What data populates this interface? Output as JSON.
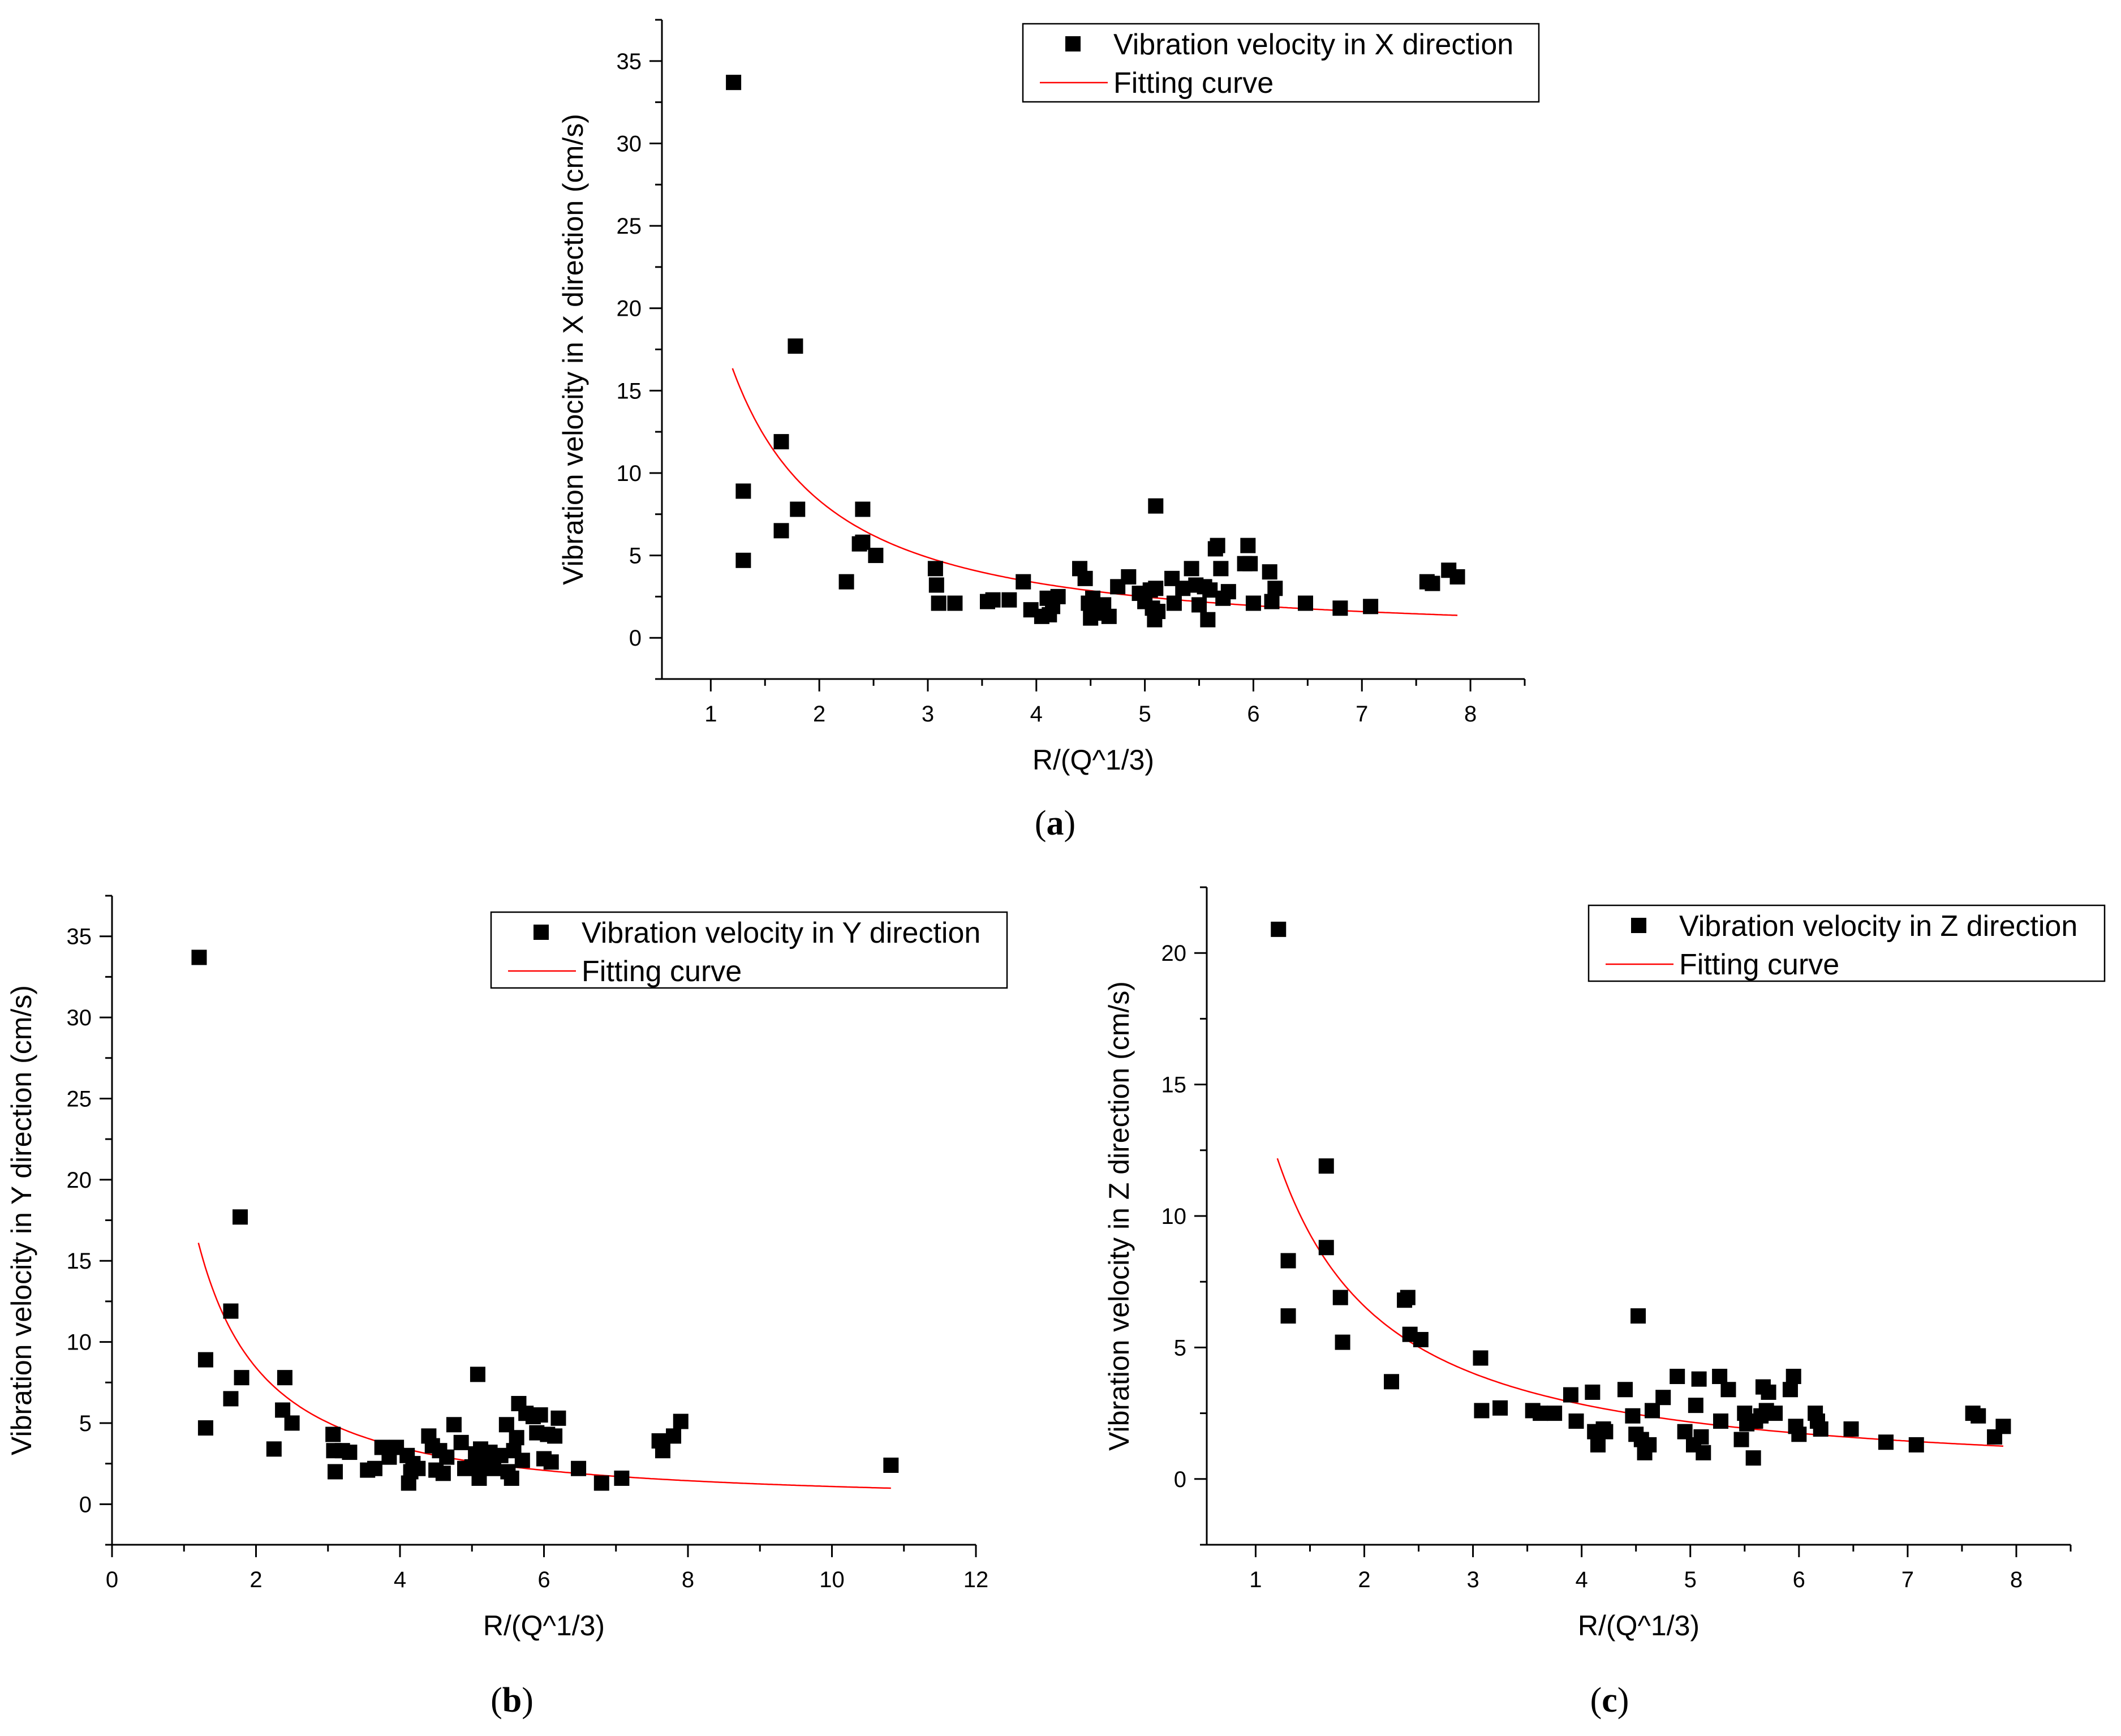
{
  "figure": {
    "panels": [
      "a",
      "b",
      "c"
    ]
  },
  "chart_data": [
    {
      "id": "a",
      "type": "scatter",
      "caption": {
        "open": "(",
        "letter": "a",
        "close": ")"
      },
      "xlabel": "R/(Q^1/3)",
      "ylabel": "Vibration velocity in X direction (cm/s)",
      "xlim": [
        0.55,
        8.5
      ],
      "ylim": [
        -2.5,
        37.5
      ],
      "xticks": [
        1,
        2,
        3,
        4,
        5,
        6,
        7,
        8
      ],
      "yticks": [
        0,
        5,
        10,
        15,
        20,
        25,
        30,
        35
      ],
      "legend": {
        "position": "top-right",
        "series_label": "Vibration velocity in X direction",
        "fit_label": "Fitting curve"
      },
      "colors": {
        "points": "#000000",
        "fit": "#ff0000"
      },
      "fit": {
        "k": 20.8,
        "alpha": 1.32,
        "x_range": [
          1.2,
          7.88
        ]
      },
      "points": [
        [
          1.21,
          33.7
        ],
        [
          1.78,
          17.7
        ],
        [
          1.65,
          11.9
        ],
        [
          1.3,
          8.9
        ],
        [
          1.3,
          4.7
        ],
        [
          1.65,
          6.5
        ],
        [
          1.8,
          7.8
        ],
        [
          2.4,
          7.8
        ],
        [
          2.37,
          5.7
        ],
        [
          2.4,
          5.8
        ],
        [
          2.52,
          5.0
        ],
        [
          2.25,
          3.4
        ],
        [
          3.07,
          4.2
        ],
        [
          3.08,
          3.2
        ],
        [
          3.1,
          2.1
        ],
        [
          3.25,
          2.1
        ],
        [
          3.55,
          2.2
        ],
        [
          3.6,
          2.3
        ],
        [
          3.75,
          2.3
        ],
        [
          3.88,
          3.4
        ],
        [
          3.95,
          1.7
        ],
        [
          4.05,
          1.3
        ],
        [
          4.1,
          2.4
        ],
        [
          4.12,
          1.4
        ],
        [
          4.15,
          1.9
        ],
        [
          4.2,
          2.5
        ],
        [
          4.4,
          4.2
        ],
        [
          4.45,
          3.6
        ],
        [
          4.48,
          2.1
        ],
        [
          4.5,
          1.2
        ],
        [
          4.52,
          2.4
        ],
        [
          4.6,
          1.5
        ],
        [
          4.62,
          2.0
        ],
        [
          4.67,
          1.3
        ],
        [
          4.75,
          3.1
        ],
        [
          4.85,
          3.7
        ],
        [
          4.95,
          2.7
        ],
        [
          5.0,
          2.2
        ],
        [
          5.05,
          2.9
        ],
        [
          5.07,
          1.8
        ],
        [
          5.09,
          1.1
        ],
        [
          5.1,
          3.0
        ],
        [
          5.1,
          8.0
        ],
        [
          5.12,
          1.6
        ],
        [
          5.25,
          3.6
        ],
        [
          5.27,
          2.1
        ],
        [
          5.35,
          3.0
        ],
        [
          5.43,
          4.2
        ],
        [
          5.47,
          3.2
        ],
        [
          5.5,
          2.0
        ],
        [
          5.55,
          3.1
        ],
        [
          5.58,
          1.1
        ],
        [
          5.6,
          2.9
        ],
        [
          5.65,
          5.4
        ],
        [
          5.67,
          5.6
        ],
        [
          5.7,
          4.2
        ],
        [
          5.72,
          2.4
        ],
        [
          5.77,
          2.8
        ],
        [
          5.92,
          4.5
        ],
        [
          5.95,
          5.6
        ],
        [
          5.97,
          4.5
        ],
        [
          6.0,
          2.1
        ],
        [
          6.15,
          4.0
        ],
        [
          6.17,
          2.2
        ],
        [
          6.2,
          3.0
        ],
        [
          6.48,
          2.1
        ],
        [
          6.8,
          1.8
        ],
        [
          7.08,
          1.9
        ],
        [
          7.6,
          3.4
        ],
        [
          7.65,
          3.3
        ],
        [
          7.8,
          4.1
        ],
        [
          7.88,
          3.7
        ]
      ]
    },
    {
      "id": "b",
      "type": "scatter",
      "caption": {
        "open": "(",
        "letter": "b",
        "close": ")"
      },
      "xlabel": "R/(Q^1/3)",
      "ylabel": "Vibration velocity in Y direction (cm/s)",
      "xlim": [
        0,
        12
      ],
      "ylim": [
        -2.5,
        37.5
      ],
      "xticks": [
        0,
        2,
        4,
        6,
        8,
        10,
        12
      ],
      "yticks": [
        0,
        5,
        10,
        15,
        20,
        25,
        30,
        35
      ],
      "legend": {
        "position": "top-right",
        "series_label": "Vibration velocity in Y direction",
        "fit_label": "Fitting curve"
      },
      "colors": {
        "points": "#000000",
        "fit": "#ff0000"
      },
      "fit": {
        "k": 20.3,
        "alpha": 1.27,
        "x_range": [
          1.2,
          10.82
        ]
      },
      "points": [
        [
          1.21,
          33.7
        ],
        [
          1.78,
          17.7
        ],
        [
          1.65,
          11.9
        ],
        [
          1.3,
          8.9
        ],
        [
          1.3,
          4.7
        ],
        [
          1.65,
          6.5
        ],
        [
          1.8,
          7.8
        ],
        [
          2.4,
          7.8
        ],
        [
          2.37,
          5.8
        ],
        [
          2.5,
          5.0
        ],
        [
          2.25,
          3.4
        ],
        [
          3.07,
          4.3
        ],
        [
          3.08,
          3.3
        ],
        [
          3.1,
          2.0
        ],
        [
          3.2,
          3.3
        ],
        [
          3.3,
          3.2
        ],
        [
          3.55,
          2.1
        ],
        [
          3.65,
          2.2
        ],
        [
          3.75,
          3.5
        ],
        [
          3.85,
          2.9
        ],
        [
          3.95,
          3.5
        ],
        [
          4.1,
          3.0
        ],
        [
          4.12,
          1.3
        ],
        [
          4.15,
          2.0
        ],
        [
          4.18,
          2.5
        ],
        [
          4.25,
          2.2
        ],
        [
          4.4,
          4.2
        ],
        [
          4.45,
          3.6
        ],
        [
          4.5,
          2.1
        ],
        [
          4.55,
          3.3
        ],
        [
          4.6,
          1.9
        ],
        [
          4.65,
          2.9
        ],
        [
          4.75,
          4.9
        ],
        [
          4.85,
          3.8
        ],
        [
          4.9,
          2.2
        ],
        [
          5.0,
          2.3
        ],
        [
          5.05,
          3.1
        ],
        [
          5.08,
          8.0
        ],
        [
          5.1,
          1.6
        ],
        [
          5.12,
          3.4
        ],
        [
          5.2,
          2.5
        ],
        [
          5.25,
          3.2
        ],
        [
          5.3,
          2.2
        ],
        [
          5.4,
          3.0
        ],
        [
          5.48,
          4.9
        ],
        [
          5.5,
          2.0
        ],
        [
          5.55,
          1.6
        ],
        [
          5.58,
          3.3
        ],
        [
          5.62,
          4.1
        ],
        [
          5.65,
          6.2
        ],
        [
          5.7,
          2.7
        ],
        [
          5.75,
          5.6
        ],
        [
          5.85,
          5.4
        ],
        [
          5.9,
          4.4
        ],
        [
          5.95,
          5.5
        ],
        [
          6.0,
          2.8
        ],
        [
          6.05,
          4.3
        ],
        [
          6.1,
          2.6
        ],
        [
          6.15,
          4.2
        ],
        [
          6.2,
          5.3
        ],
        [
          6.48,
          2.2
        ],
        [
          6.8,
          1.3
        ],
        [
          7.08,
          1.6
        ],
        [
          7.6,
          3.9
        ],
        [
          7.65,
          3.3
        ],
        [
          7.8,
          4.2
        ],
        [
          7.9,
          5.1
        ],
        [
          10.82,
          2.4
        ]
      ]
    },
    {
      "id": "c",
      "type": "scatter",
      "caption": {
        "open": "(",
        "letter": "c",
        "close": ")"
      },
      "xlabel": "R/(Q^1/3)",
      "ylabel": "Vibration velocity in Z direction (cm/s)",
      "xlim": [
        0.55,
        8.5
      ],
      "ylim": [
        -2.5,
        22.5
      ],
      "xticks": [
        1,
        2,
        3,
        4,
        5,
        6,
        7,
        8
      ],
      "yticks": [
        0,
        5,
        10,
        15,
        20
      ],
      "legend": {
        "position": "top-right",
        "series_label": "Vibration velocity in Z direction",
        "fit_label": "Fitting curve"
      },
      "colors": {
        "points": "#000000",
        "fit": "#ff0000"
      },
      "fit": {
        "k": 15.2,
        "alpha": 1.21,
        "x_range": [
          1.2,
          7.88
        ]
      },
      "points": [
        [
          1.21,
          20.9
        ],
        [
          1.65,
          11.9
        ],
        [
          1.3,
          8.3
        ],
        [
          1.3,
          6.2
        ],
        [
          1.65,
          8.8
        ],
        [
          1.78,
          6.9
        ],
        [
          1.8,
          5.2
        ],
        [
          2.25,
          3.7
        ],
        [
          2.37,
          6.8
        ],
        [
          2.4,
          6.9
        ],
        [
          2.42,
          5.5
        ],
        [
          2.52,
          5.3
        ],
        [
          3.07,
          4.6
        ],
        [
          3.08,
          2.6
        ],
        [
          3.25,
          2.7
        ],
        [
          3.55,
          2.6
        ],
        [
          3.62,
          2.5
        ],
        [
          3.75,
          2.5
        ],
        [
          3.9,
          3.2
        ],
        [
          3.95,
          2.2
        ],
        [
          4.1,
          3.3
        ],
        [
          4.12,
          1.8
        ],
        [
          4.15,
          1.3
        ],
        [
          4.2,
          1.9
        ],
        [
          4.22,
          1.8
        ],
        [
          4.4,
          3.4
        ],
        [
          4.47,
          2.4
        ],
        [
          4.5,
          1.7
        ],
        [
          4.52,
          6.2
        ],
        [
          4.55,
          1.5
        ],
        [
          4.58,
          1.0
        ],
        [
          4.62,
          1.3
        ],
        [
          4.65,
          2.6
        ],
        [
          4.75,
          3.1
        ],
        [
          4.88,
          3.9
        ],
        [
          4.95,
          1.8
        ],
        [
          5.03,
          1.3
        ],
        [
          5.05,
          2.8
        ],
        [
          5.08,
          3.8
        ],
        [
          5.1,
          1.6
        ],
        [
          5.12,
          1.0
        ],
        [
          5.27,
          3.9
        ],
        [
          5.35,
          3.4
        ],
        [
          5.28,
          2.2
        ],
        [
          5.47,
          1.5
        ],
        [
          5.5,
          2.5
        ],
        [
          5.52,
          2.1
        ],
        [
          5.58,
          0.8
        ],
        [
          5.6,
          2.2
        ],
        [
          5.65,
          2.4
        ],
        [
          5.67,
          3.5
        ],
        [
          5.7,
          2.6
        ],
        [
          5.72,
          3.3
        ],
        [
          5.78,
          2.5
        ],
        [
          5.92,
          3.4
        ],
        [
          5.95,
          3.9
        ],
        [
          5.97,
          2.0
        ],
        [
          6.0,
          1.7
        ],
        [
          6.15,
          2.5
        ],
        [
          6.17,
          2.2
        ],
        [
          6.2,
          1.9
        ],
        [
          6.48,
          1.9
        ],
        [
          6.8,
          1.4
        ],
        [
          7.08,
          1.3
        ],
        [
          7.6,
          2.5
        ],
        [
          7.65,
          2.4
        ],
        [
          7.8,
          1.6
        ],
        [
          7.88,
          2.0
        ]
      ]
    }
  ]
}
